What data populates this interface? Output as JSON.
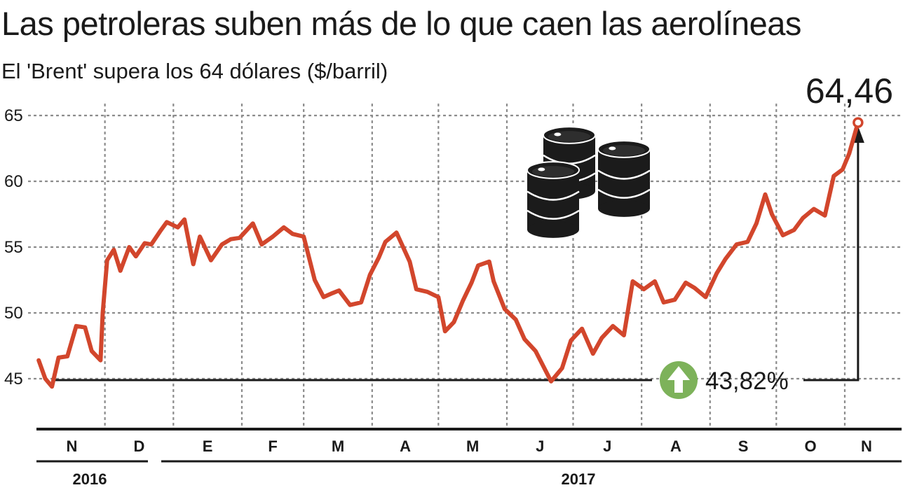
{
  "chart_data": {
    "type": "line",
    "title": "Las petroleras suben más de lo que caen las aerolíneas",
    "subtitle": "El 'Brent' supera los 64 dólares ($/barril)",
    "ylim": [
      41.5,
      66
    ],
    "yticks": [
      45,
      50,
      55,
      60,
      65
    ],
    "months": [
      "N",
      "D",
      "E",
      "F",
      "M",
      "A",
      "M",
      "J",
      "J",
      "A",
      "S",
      "O",
      "N"
    ],
    "years": [
      "2016",
      "2017"
    ],
    "grid": true,
    "last_value_label": "64,46",
    "change_label": "43,82%",
    "line_color": "#d2462c",
    "change_icon_color": "#7db25a",
    "series": [
      {
        "x": [
          "2016-11-01",
          "2016-11-04",
          "2016-11-07",
          "2016-11-10",
          "2016-11-14",
          "2016-11-18",
          "2016-11-22",
          "2016-11-25",
          "2016-11-29",
          "2016-11-30",
          "2016-12-02",
          "2016-12-05",
          "2016-12-08",
          "2016-12-12",
          "2016-12-15",
          "2016-12-19",
          "2016-12-22",
          "2016-12-26",
          "2016-12-29",
          "2017-01-03",
          "2017-01-06",
          "2017-01-10",
          "2017-01-13",
          "2017-01-18",
          "2017-01-23",
          "2017-01-27",
          "2017-01-31",
          "2017-02-06",
          "2017-02-10",
          "2017-02-15",
          "2017-02-20",
          "2017-02-24",
          "2017-03-01",
          "2017-03-06",
          "2017-03-10",
          "2017-03-14",
          "2017-03-17",
          "2017-03-22",
          "2017-03-27",
          "2017-03-31",
          "2017-04-04",
          "2017-04-07",
          "2017-04-12",
          "2017-04-18",
          "2017-04-21",
          "2017-04-26",
          "2017-05-01",
          "2017-05-04",
          "2017-05-08",
          "2017-05-12",
          "2017-05-16",
          "2017-05-19",
          "2017-05-24",
          "2017-05-26",
          "2017-05-31",
          "2017-06-05",
          "2017-06-09",
          "2017-06-14",
          "2017-06-21",
          "2017-06-26",
          "2017-06-30",
          "2017-07-05",
          "2017-07-10",
          "2017-07-14",
          "2017-07-19",
          "2017-07-24",
          "2017-07-28",
          "2017-08-02",
          "2017-08-07",
          "2017-08-11",
          "2017-08-16",
          "2017-08-21",
          "2017-08-25",
          "2017-08-30",
          "2017-09-04",
          "2017-09-08",
          "2017-09-13",
          "2017-09-18",
          "2017-09-22",
          "2017-09-26",
          "2017-09-29",
          "2017-10-04",
          "2017-10-09",
          "2017-10-13",
          "2017-10-18",
          "2017-10-23",
          "2017-10-27",
          "2017-10-31",
          "2017-11-03",
          "2017-11-07"
        ],
        "y": [
          46.4,
          45.0,
          44.4,
          46.6,
          46.7,
          49.0,
          48.9,
          47.1,
          46.4,
          50.0,
          54.0,
          54.8,
          53.2,
          55.0,
          54.3,
          55.3,
          55.2,
          56.2,
          56.9,
          56.5,
          57.1,
          53.7,
          55.8,
          54.0,
          55.2,
          55.6,
          55.7,
          56.8,
          55.2,
          55.8,
          56.5,
          56.0,
          55.8,
          52.5,
          51.2,
          51.5,
          51.7,
          50.6,
          50.8,
          52.9,
          54.2,
          55.4,
          56.1,
          53.9,
          51.8,
          51.6,
          51.2,
          48.6,
          49.3,
          50.9,
          52.3,
          53.6,
          53.9,
          52.4,
          50.3,
          49.5,
          48.0,
          47.1,
          44.8,
          45.8,
          47.9,
          48.8,
          46.9,
          48.1,
          49.0,
          48.3,
          52.4,
          51.8,
          52.4,
          50.8,
          51.0,
          52.3,
          51.9,
          51.2,
          53.0,
          54.1,
          55.2,
          55.4,
          56.8,
          59.0,
          57.5,
          55.9,
          56.3,
          57.2,
          57.9,
          57.4,
          60.4,
          60.9,
          62.1,
          64.46
        ]
      }
    ]
  }
}
